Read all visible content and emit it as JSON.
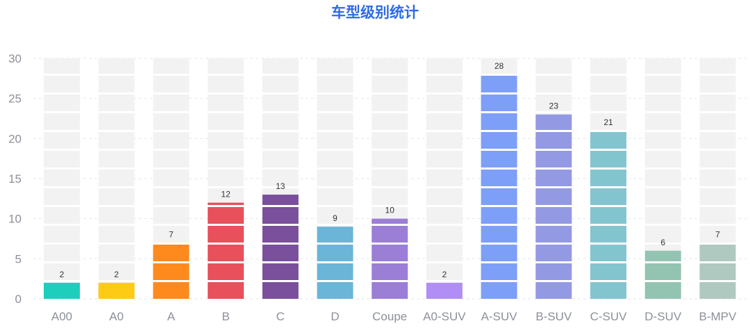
{
  "chart_data": {
    "type": "bar",
    "title": "车型级别统计",
    "categories": [
      "A00",
      "A0",
      "A",
      "B",
      "C",
      "D",
      "Coupe",
      "A0-SUV",
      "A-SUV",
      "B-SUV",
      "C-SUV",
      "D-SUV",
      "B-MPV"
    ],
    "values": [
      2,
      2,
      7,
      12,
      13,
      9,
      10,
      2,
      28,
      23,
      21,
      6,
      7
    ],
    "colors": [
      "#1ECEBD",
      "#FDCB14",
      "#FE8A1D",
      "#E8505C",
      "#7A4F9C",
      "#6AB5D8",
      "#9B7ED6",
      "#B08EF5",
      "#7E9FF8",
      "#9499E3",
      "#83C5CF",
      "#93C4B1",
      "#AFC9C0"
    ],
    "ylim": [
      0,
      30
    ],
    "yticks": [
      0,
      5,
      10,
      15,
      20,
      25,
      30
    ],
    "grid": true,
    "legend": "none",
    "title_color": "#2E6BE6",
    "background_bar_color": "#F2F2F2",
    "grid_color": "#E3E6EB"
  }
}
